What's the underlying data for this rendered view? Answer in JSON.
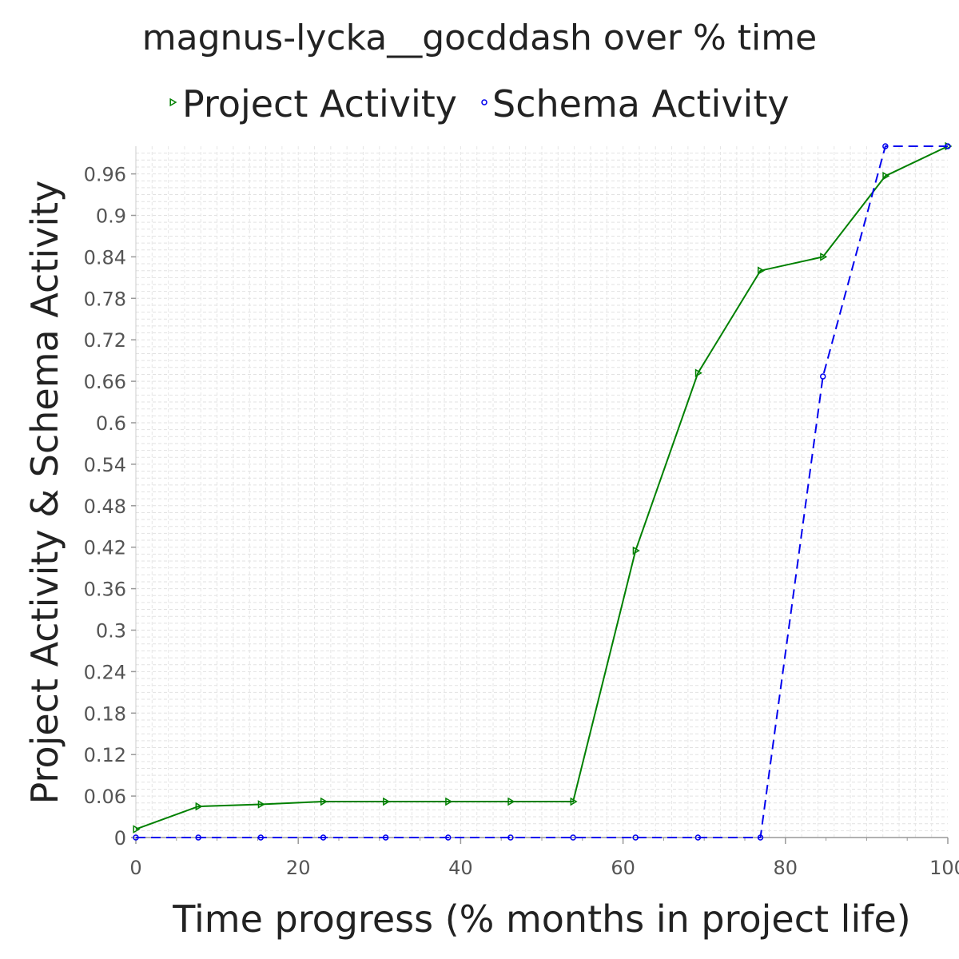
{
  "chart_data": {
    "type": "line",
    "title": "magnus-lycka__gocddash over % time",
    "xlabel": "Time progress (% months in project life)",
    "ylabel": "Project Activity & Schema Activity",
    "xlim": [
      0,
      100
    ],
    "ylim": [
      0,
      1.0
    ],
    "x_ticks": [
      "0",
      "20",
      "40",
      "60",
      "80",
      "100"
    ],
    "y_ticks": [
      "0",
      "0.06",
      "0.12",
      "0.18",
      "0.24",
      "0.3",
      "0.36",
      "0.42",
      "0.48",
      "0.54",
      "0.6",
      "0.66",
      "0.72",
      "0.78",
      "0.84",
      "0.9",
      "0.96"
    ],
    "grid": true,
    "legend_position": "top",
    "series": [
      {
        "name": "Project Activity",
        "color": "#008000",
        "marker": "triangle-right",
        "line_style": "solid",
        "x": [
          0,
          7.69,
          15.38,
          23.08,
          30.77,
          38.46,
          46.15,
          53.85,
          61.54,
          69.23,
          76.92,
          84.62,
          92.31,
          100
        ],
        "values": [
          0.012,
          0.045,
          0.048,
          0.052,
          0.052,
          0.052,
          0.052,
          0.052,
          0.415,
          0.672,
          0.82,
          0.84,
          0.957,
          1.0
        ]
      },
      {
        "name": "Schema Activity",
        "color": "#0000ee",
        "marker": "circle",
        "line_style": "dashed",
        "x": [
          0,
          7.69,
          15.38,
          23.08,
          30.77,
          38.46,
          46.15,
          53.85,
          61.54,
          69.23,
          76.92,
          84.62,
          92.31,
          100
        ],
        "values": [
          0,
          0,
          0,
          0,
          0,
          0,
          0,
          0,
          0,
          0,
          0,
          0.667,
          1.0,
          1.0
        ]
      }
    ]
  }
}
